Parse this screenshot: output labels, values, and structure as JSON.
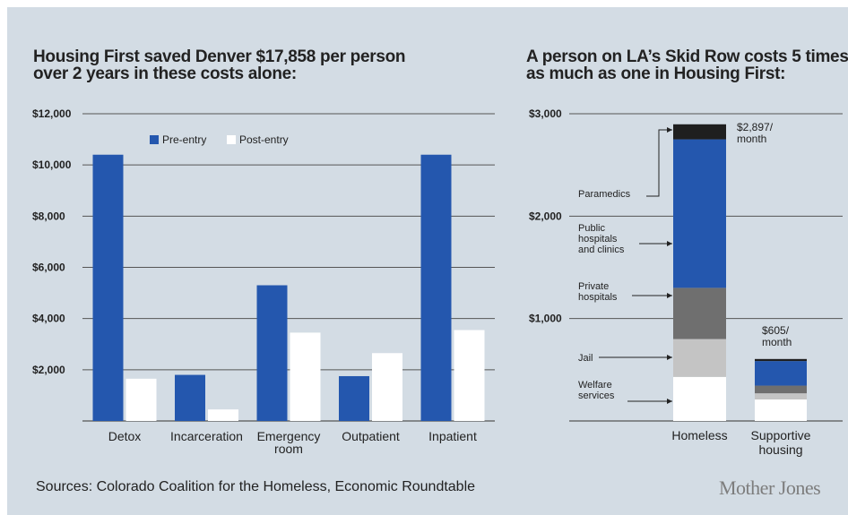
{
  "chart_data": [
    {
      "type": "bar",
      "title_lines": [
        "Housing First saved Denver $17,858 per person",
        "over 2 years in these costs alone:"
      ],
      "categories": [
        [
          "Detox"
        ],
        [
          "Incarceration"
        ],
        [
          "Emergency",
          "room"
        ],
        [
          "Outpatient"
        ],
        [
          "Inpatient"
        ]
      ],
      "series": [
        {
          "name": "Pre-entry",
          "color": "#2457ae",
          "values": [
            10400,
            1800,
            5300,
            1750,
            10400
          ]
        },
        {
          "name": "Post-entry",
          "color": "#ffffff",
          "values": [
            1650,
            450,
            3450,
            2650,
            3550
          ]
        }
      ],
      "yticks": [
        2000,
        4000,
        6000,
        8000,
        10000,
        12000
      ],
      "ytick_labels": [
        "$2,000",
        "$4,000",
        "$6,000",
        "$8,000",
        "$10,000",
        "$12,000"
      ],
      "ylim": [
        0,
        12000
      ],
      "legend": "top-center",
      "grid": true
    },
    {
      "type": "stacked-bar",
      "title_lines": [
        "A person on LA’s Skid Row costs 5 times",
        "as much as one in Housing First:"
      ],
      "categories": [
        [
          "Homeless"
        ],
        [
          "Supportive",
          "housing"
        ]
      ],
      "segments": [
        {
          "name": [
            "Welfare",
            "services"
          ],
          "color": "#ffffff",
          "values": [
            430,
            210
          ]
        },
        {
          "name": [
            "Jail"
          ],
          "color": "#c4c4c4",
          "values": [
            370,
            60
          ]
        },
        {
          "name": [
            "Private",
            "hospitals"
          ],
          "color": "#6f6f6f",
          "values": [
            500,
            75
          ]
        },
        {
          "name": [
            "Public",
            "hospitals",
            "and clinics"
          ],
          "color": "#2457ae",
          "values": [
            1450,
            240
          ]
        },
        {
          "name": [
            "Paramedics"
          ],
          "color": "#1f1f1f",
          "values": [
            147,
            20
          ]
        }
      ],
      "totals": [
        [
          "$2,897/",
          "month"
        ],
        [
          "$605/",
          "month"
        ]
      ],
      "yticks": [
        1000,
        2000,
        3000
      ],
      "ytick_labels": [
        "$1,000",
        "$2,000",
        "$3,000"
      ],
      "ylim": [
        0,
        3000
      ],
      "grid": true
    }
  ],
  "source": "Sources: Colorado Coalition for the Homeless, Economic Roundtable",
  "brand": "Mother Jones"
}
